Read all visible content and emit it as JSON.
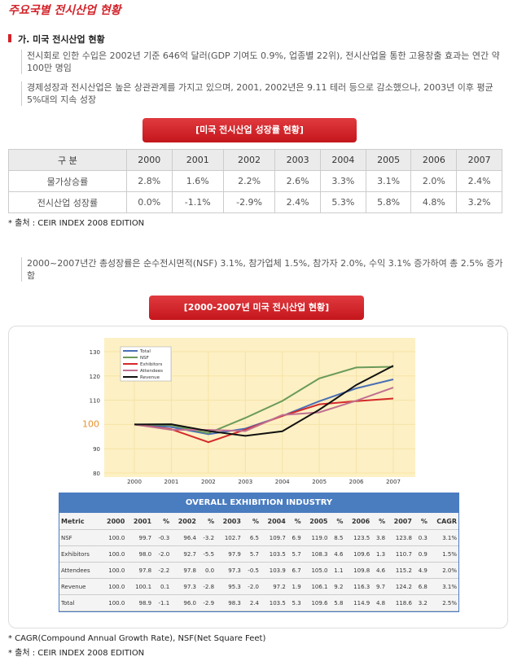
{
  "header": {
    "title": "주요국별 전시산업 현황"
  },
  "section": {
    "title": "가. 미국 전시산업 현황"
  },
  "bullets": [
    "전시회로 인한 수입은 2002년 기준 646억 달러(GDP 기여도 0.9%, 업종별 22위), 전시산업을 통한 고용창출 효과는 연간 약 100만 명임",
    "경제성장과 전시산업은 높은 상관관계를 가지고 있으며, 2001, 2002년은  9.11 테러 등으로 감소했으나, 2003년 이후 평균 5%대의 지속 성장",
    "2000~2007년간 총성장률은 순수전시면적(NSF) 3.1%, 참가업체 1.5%, 참가자 2.0%, 수익 3.1% 증가하여 총 2.5% 증가함"
  ],
  "table1": {
    "caption": "[미국 전시산업 성장률 현황]",
    "header": [
      "구 분",
      "2000",
      "2001",
      "2002",
      "2003",
      "2004",
      "2005",
      "2006",
      "2007"
    ],
    "rows": [
      [
        "물가상승률",
        "2.8%",
        "1.6%",
        "2.2%",
        "2.6%",
        "3.3%",
        "3.1%",
        "2.0%",
        "2.4%"
      ],
      [
        "전시산업 성장률",
        "0.0%",
        "-1.1%",
        "-2.9%",
        "2.4%",
        "5.3%",
        "5.8%",
        "4.8%",
        "3.2%"
      ]
    ],
    "source": "* 출처 : CEIR INDEX 2008 EDITION"
  },
  "chart_caption": "[2000-2007년 미국 전시산업 현황]",
  "chart_data": {
    "type": "line",
    "categories": [
      "2000",
      "2001",
      "2002",
      "2003",
      "2004",
      "2005",
      "2006",
      "2007"
    ],
    "series": [
      {
        "name": "Total",
        "color": "#4a6fb5",
        "values": [
          100,
          98.9,
          96.0,
          98.3,
          103.5,
          109.6,
          114.9,
          118.6
        ]
      },
      {
        "name": "NSF",
        "color": "#6a9a5a",
        "values": [
          100,
          99.7,
          96.4,
          102.7,
          109.7,
          119.0,
          123.5,
          123.8
        ]
      },
      {
        "name": "Exhibitors",
        "color": "#d42a2a",
        "values": [
          100,
          98.0,
          92.7,
          97.9,
          103.5,
          108.3,
          109.6,
          110.7
        ]
      },
      {
        "name": "Attendees",
        "color": "#c07090",
        "values": [
          100,
          97.8,
          97.8,
          97.3,
          103.9,
          105.0,
          109.8,
          115.2
        ]
      },
      {
        "name": "Revenue",
        "color": "#111111",
        "values": [
          100,
          100.1,
          97.3,
          95.3,
          97.2,
          106.1,
          116.3,
          124.2
        ]
      }
    ],
    "ylim": [
      80,
      130
    ],
    "yticks": [
      80,
      90,
      100,
      110,
      120,
      130
    ],
    "highlight_ytick": 100,
    "grid": true
  },
  "table2": {
    "title": "OVERALL EXHIBITION INDUSTRY",
    "header": [
      "Metric",
      "2000",
      "2001",
      "%",
      "2002",
      "%",
      "2003",
      "%",
      "2004",
      "%",
      "2005",
      "%",
      "2006",
      "%",
      "2007",
      "%",
      "CAGR"
    ],
    "rows": [
      [
        "NSF",
        "100.0",
        "99.7",
        "-0.3",
        "96.4",
        "-3.2",
        "102.7",
        "6.5",
        "109.7",
        "6.9",
        "119.0",
        "8.5",
        "123.5",
        "3.8",
        "123.8",
        "0.3",
        "3.1%"
      ],
      [
        "Exhibitors",
        "100.0",
        "98.0",
        "-2.0",
        "92.7",
        "-5.5",
        "97.9",
        "5.7",
        "103.5",
        "5.7",
        "108.3",
        "4.6",
        "109.6",
        "1.3",
        "110.7",
        "0.9",
        "1.5%"
      ],
      [
        "Attendees",
        "100.0",
        "97.8",
        "-2.2",
        "97.8",
        "0.0",
        "97.3",
        "-0.5",
        "103.9",
        "6.7",
        "105.0",
        "1.1",
        "109.8",
        "4.6",
        "115.2",
        "4.9",
        "2.0%"
      ],
      [
        "Revenue",
        "100.0",
        "100.1",
        "0.1",
        "97.3",
        "-2.8",
        "95.3",
        "-2.0",
        "97.2",
        "1.9",
        "106.1",
        "9.2",
        "116.3",
        "9.7",
        "124.2",
        "6.8",
        "3.1%"
      ],
      [
        "Total",
        "100.0",
        "98.9",
        "-1.1",
        "96.0",
        "-2.9",
        "98.3",
        "2.4",
        "103.5",
        "5.3",
        "109.6",
        "5.8",
        "114.9",
        "4.8",
        "118.6",
        "3.2",
        "2.5%"
      ]
    ]
  },
  "notes": [
    "* CAGR(Compound Annual Growth Rate), NSF(Net Square Feet)",
    "* 출처 : CEIR INDEX 2008 EDITION"
  ]
}
